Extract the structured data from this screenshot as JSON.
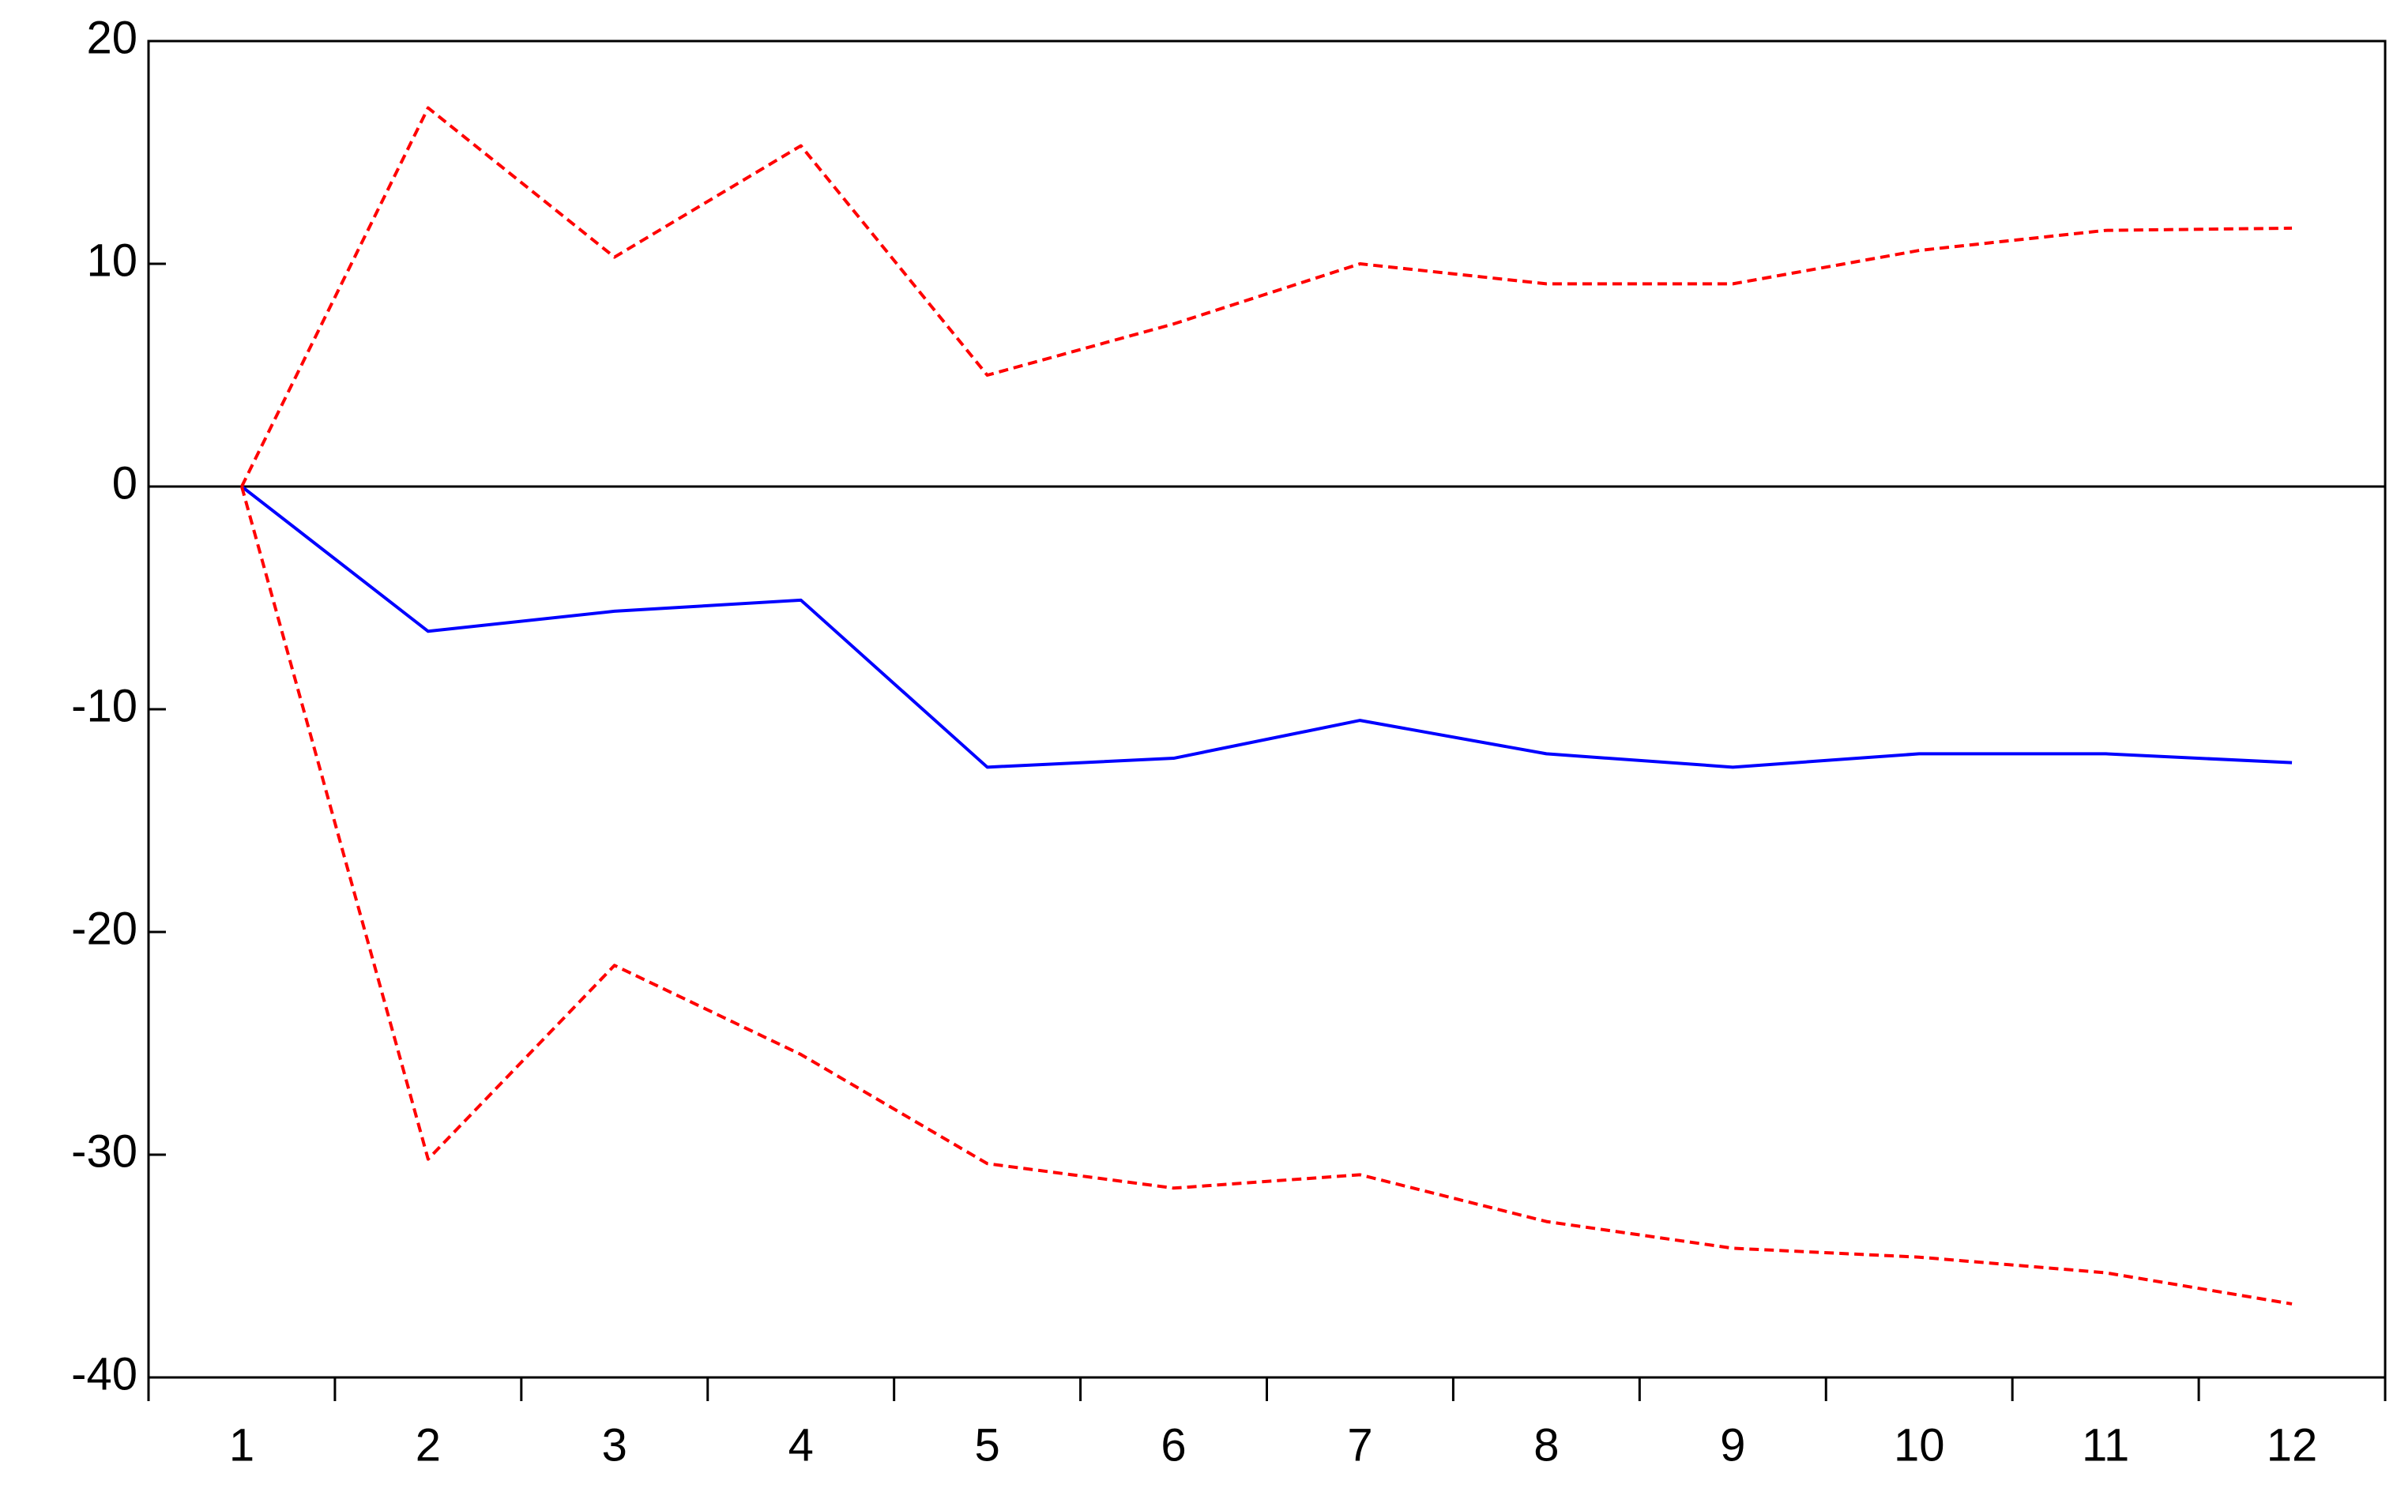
{
  "chart_data": {
    "type": "line",
    "categories": [
      1,
      2,
      3,
      4,
      5,
      6,
      7,
      8,
      9,
      10,
      11,
      12
    ],
    "series": [
      {
        "color": "#0000ff",
        "style": "solid",
        "values": [
          0,
          -6.5,
          -5.6,
          -5.1,
          -12.6,
          -12.2,
          -10.5,
          -12.0,
          -12.6,
          -12.0,
          -12.0,
          -12.4
        ]
      },
      {
        "color": "#ff0000",
        "style": "dashed",
        "values": [
          0,
          17.0,
          10.3,
          15.3,
          5.0,
          7.3,
          10.0,
          9.1,
          9.1,
          10.6,
          11.5,
          11.6
        ]
      },
      {
        "color": "#ff0000",
        "style": "dashed",
        "values": [
          0,
          -30.2,
          -21.5,
          -25.5,
          -30.4,
          -31.5,
          -30.9,
          -33.0,
          -34.2,
          -34.6,
          -35.3,
          -36.7
        ]
      }
    ],
    "ylim": [
      -40,
      20
    ],
    "yticks": [
      -40,
      -30,
      -20,
      -10,
      0,
      10,
      20
    ],
    "zero_line": true
  }
}
